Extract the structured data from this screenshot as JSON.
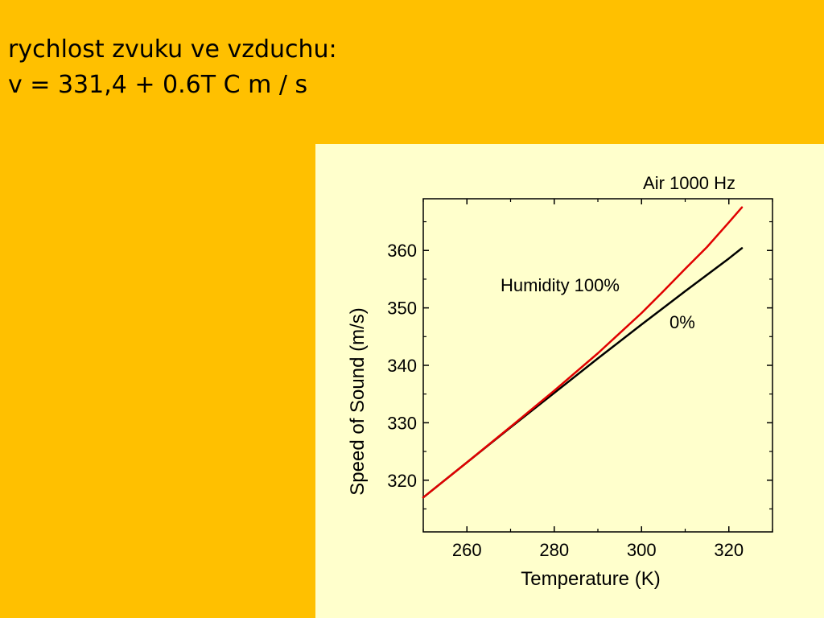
{
  "slide": {
    "heading_line1": "rychlost zvuku ve vzduchu:",
    "heading_line2": "v = 331,4 + 0.6T C m / s"
  },
  "colors": {
    "background": "#FFC000",
    "panel": "#FFFFCC",
    "humid": "#E00000",
    "dry": "#000000"
  },
  "chart_data": {
    "type": "line",
    "title": "Air 1000 Hz",
    "xlabel": "Temperature (K)",
    "ylabel": "Speed of Sound (m/s)",
    "xlim": [
      250,
      330
    ],
    "ylim": [
      311,
      369
    ],
    "xticks": [
      260,
      280,
      300,
      320
    ],
    "yticks": [
      320,
      330,
      340,
      350,
      360
    ],
    "grid": false,
    "series": [
      {
        "name": "0%",
        "color": "#000000",
        "x": [
          250,
          260,
          270,
          280,
          290,
          300,
          310,
          320,
          323
        ],
        "y": [
          317.0,
          323.1,
          329.2,
          335.2,
          341.2,
          347.1,
          352.9,
          358.6,
          360.4
        ]
      },
      {
        "name": "Humidity 100%",
        "color": "#E00000",
        "x": [
          250,
          260,
          270,
          280,
          290,
          300,
          305,
          310,
          315,
          320,
          323
        ],
        "y": [
          317.0,
          323.1,
          329.3,
          335.6,
          342.1,
          349.1,
          352.9,
          356.8,
          360.6,
          364.9,
          367.5
        ]
      }
    ]
  }
}
